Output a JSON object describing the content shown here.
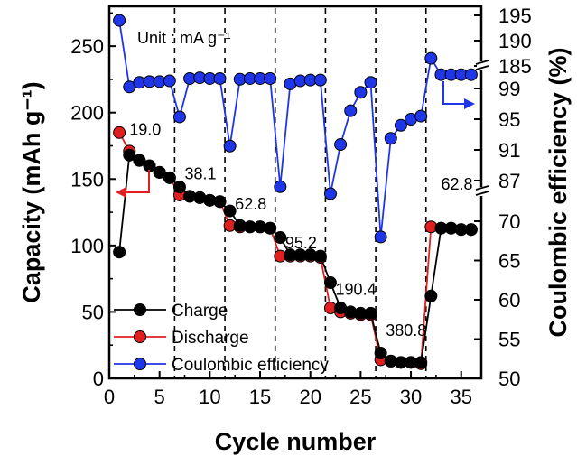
{
  "chart_data": {
    "type": "scatter",
    "xlabel": "Cycle number",
    "ylabel_left": "Capacity (mAh g⁻¹)",
    "ylabel_right": "Coulombic efficiency (%)",
    "unit_note": "Unit : mA g⁻¹",
    "xlim": [
      0,
      37
    ],
    "ylim_left": [
      0,
      280
    ],
    "x_ticks": [
      0,
      5,
      10,
      15,
      20,
      25,
      30,
      35
    ],
    "y_ticks_left": [
      0,
      50,
      100,
      150,
      200,
      250
    ],
    "y_ticks_right": [
      {
        "label": "50",
        "value": 50
      },
      {
        "label": "55",
        "value": 55
      },
      {
        "label": "60",
        "value": 60
      },
      {
        "label": "65",
        "value": 65
      },
      {
        "label": "70",
        "value": 70
      },
      {
        "label": "87",
        "value": 87
      },
      {
        "label": "91",
        "value": 91
      },
      {
        "label": "95",
        "value": 95
      },
      {
        "label": "99",
        "value": 99
      },
      {
        "label": "185",
        "value": 185
      },
      {
        "label": "190",
        "value": 190
      },
      {
        "label": "195",
        "value": 195
      }
    ],
    "rate_boundaries": [
      6.5,
      11.5,
      16.5,
      21.5,
      26.5,
      31.5
    ],
    "rate_labels": [
      {
        "text": "19.0",
        "x": 2,
        "y": 183
      },
      {
        "text": "38.1",
        "x": 7.5,
        "y": 150
      },
      {
        "text": "62.8",
        "x": 12.5,
        "y": 127
      },
      {
        "text": "95.2",
        "x": 17.5,
        "y": 98
      },
      {
        "text": "190.4",
        "x": 22.5,
        "y": 63
      },
      {
        "text": "380.8",
        "x": 27.5,
        "y": 32
      },
      {
        "text": "62.8",
        "x": 33,
        "y": 142
      }
    ],
    "series": [
      {
        "name": "Charge",
        "color": "#000000",
        "x": [
          1,
          2,
          3,
          4,
          5,
          6,
          7,
          8,
          9,
          10,
          11,
          12,
          13,
          14,
          15,
          16,
          17,
          18,
          19,
          20,
          21,
          22,
          23,
          24,
          25,
          26,
          27,
          28,
          29,
          30,
          31,
          32,
          33,
          34,
          35,
          36
        ],
        "values": [
          95,
          168,
          164,
          160,
          155,
          151,
          144,
          137,
          136,
          134,
          133,
          126,
          115,
          114,
          114,
          113,
          106,
          93,
          93,
          93,
          92,
          72,
          53,
          50,
          49,
          49,
          19,
          13,
          12,
          12,
          12,
          62,
          113,
          113,
          112,
          112
        ]
      },
      {
        "name": "Discharge",
        "color": "#e02020",
        "x": [
          1,
          2,
          3,
          4,
          5,
          6,
          7,
          8,
          9,
          10,
          11,
          12,
          13,
          14,
          15,
          16,
          17,
          18,
          19,
          20,
          21,
          22,
          23,
          24,
          25,
          26,
          27,
          28,
          29,
          30,
          31,
          32,
          33,
          34,
          35,
          36
        ],
        "values": [
          185,
          171,
          164,
          160,
          155,
          151,
          138,
          137,
          136,
          134,
          133,
          115,
          114,
          114,
          114,
          113,
          92,
          92,
          92,
          92,
          91,
          53,
          50,
          49,
          48,
          48,
          14,
          13,
          12,
          12,
          11,
          114,
          113,
          113,
          112,
          112
        ]
      },
      {
        "name": "Coulombic efficiency",
        "color": "#1f35e8",
        "axis": "right",
        "x": [
          1,
          2,
          3,
          4,
          5,
          6,
          7,
          8,
          9,
          10,
          11,
          12,
          13,
          14,
          15,
          16,
          17,
          18,
          19,
          20,
          21,
          22,
          23,
          24,
          25,
          26,
          27,
          28,
          29,
          30,
          31,
          32,
          33,
          34,
          35,
          36
        ],
        "values": [
          194,
          99.2,
          99.8,
          99.9,
          99.9,
          100.0,
          95.3,
          100.3,
          100.4,
          100.3,
          100.3,
          91.5,
          100.2,
          100.3,
          100.3,
          100.3,
          86.2,
          99.6,
          100.0,
          100.1,
          100.1,
          73.5,
          91.7,
          96.1,
          98.5,
          99.8,
          68.0,
          92.5,
          94.2,
          95.0,
          95.4,
          186.5,
          100.8,
          100.8,
          100.8,
          100.8
        ]
      }
    ],
    "legend": {
      "position": "bottom-left",
      "entries": [
        "Charge",
        "Discharge",
        "Coulombic efficiency"
      ]
    }
  }
}
